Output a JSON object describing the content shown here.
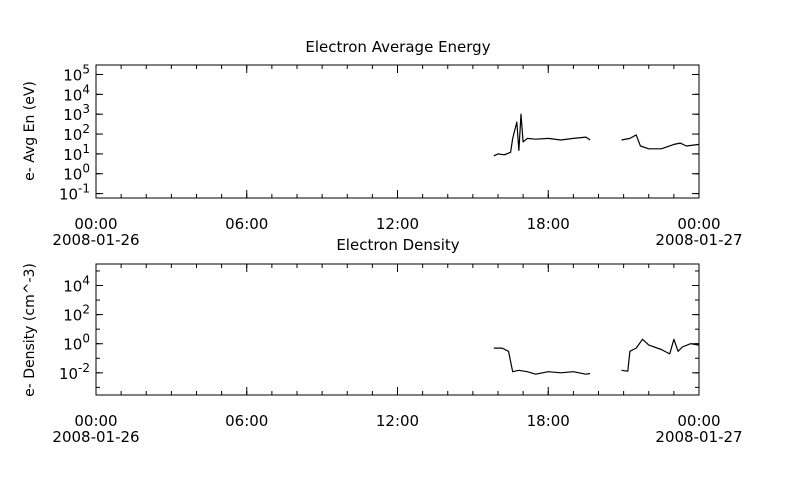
{
  "chart_data": [
    {
      "type": "line",
      "title": "Electron Average Energy",
      "ylabel": "e- Avg En (eV)",
      "xlabel": "",
      "yscale": "log",
      "ylim": [
        0.06,
        300000
      ],
      "xlim": [
        "2008-01-26 00:00",
        "2008-01-27 00:00"
      ],
      "y_ticks": [
        "10^-1",
        "10^0",
        "10^1",
        "10^2",
        "10^3",
        "10^4",
        "10^5"
      ],
      "x_ticks": [
        {
          "time": "00:00",
          "date": "2008-01-26"
        },
        {
          "time": "06:00",
          "date": ""
        },
        {
          "time": "12:00",
          "date": ""
        },
        {
          "time": "18:00",
          "date": ""
        },
        {
          "time": "00:00",
          "date": "2008-01-27"
        }
      ],
      "grid": false,
      "series": [
        {
          "values": [
            [
              "2008-01-26 15:50",
              8
            ],
            [
              "2008-01-26 16:00",
              10
            ],
            [
              "2008-01-26 16:15",
              9
            ],
            [
              "2008-01-26 16:30",
              12
            ],
            [
              "2008-01-26 16:35",
              60
            ],
            [
              "2008-01-26 16:45",
              400
            ],
            [
              "2008-01-26 16:50",
              15
            ],
            [
              "2008-01-26 16:55",
              1000
            ],
            [
              "2008-01-26 17:00",
              40
            ],
            [
              "2008-01-26 17:10",
              60
            ],
            [
              "2008-01-26 17:30",
              55
            ],
            [
              "2008-01-26 18:00",
              60
            ],
            [
              "2008-01-26 18:30",
              50
            ],
            [
              "2008-01-26 19:00",
              60
            ],
            [
              "2008-01-26 19:30",
              70
            ],
            [
              "2008-01-26 19:40",
              50
            ]
          ]
        },
        {
          "values": [
            [
              "2008-01-26 20:55",
              50
            ],
            [
              "2008-01-26 21:15",
              60
            ],
            [
              "2008-01-26 21:30",
              90
            ],
            [
              "2008-01-26 21:40",
              25
            ],
            [
              "2008-01-26 22:00",
              18
            ],
            [
              "2008-01-26 22:30",
              18
            ],
            [
              "2008-01-26 23:00",
              30
            ],
            [
              "2008-01-26 23:15",
              35
            ],
            [
              "2008-01-26 23:30",
              25
            ],
            [
              "2008-01-27 00:00",
              30
            ]
          ]
        }
      ]
    },
    {
      "type": "line",
      "title": "Electron Density",
      "ylabel": "e- Density (cm^-3)",
      "xlabel": "",
      "yscale": "log",
      "ylim": [
        0.0003,
        300000
      ],
      "xlim": [
        "2008-01-26 00:00",
        "2008-01-27 00:00"
      ],
      "y_ticks": [
        "10^-2",
        "10^0",
        "10^2",
        "10^4"
      ],
      "x_ticks": [
        {
          "time": "00:00",
          "date": "2008-01-26"
        },
        {
          "time": "06:00",
          "date": ""
        },
        {
          "time": "12:00",
          "date": ""
        },
        {
          "time": "18:00",
          "date": ""
        },
        {
          "time": "00:00",
          "date": "2008-01-27"
        }
      ],
      "grid": false,
      "series": [
        {
          "values": [
            [
              "2008-01-26 15:50",
              0.5
            ],
            [
              "2008-01-26 16:10",
              0.5
            ],
            [
              "2008-01-26 16:25",
              0.3
            ],
            [
              "2008-01-26 16:35",
              0.012
            ],
            [
              "2008-01-26 16:50",
              0.015
            ],
            [
              "2008-01-26 17:10",
              0.012
            ],
            [
              "2008-01-26 17:30",
              0.008
            ],
            [
              "2008-01-26 18:00",
              0.012
            ],
            [
              "2008-01-26 18:30",
              0.01
            ],
            [
              "2008-01-26 19:00",
              0.012
            ],
            [
              "2008-01-26 19:30",
              0.008
            ],
            [
              "2008-01-26 19:40",
              0.009
            ]
          ]
        },
        {
          "values": [
            [
              "2008-01-26 20:55",
              0.015
            ],
            [
              "2008-01-26 21:10",
              0.013
            ],
            [
              "2008-01-26 21:15",
              0.3
            ],
            [
              "2008-01-26 21:30",
              0.5
            ],
            [
              "2008-01-26 21:45",
              2
            ],
            [
              "2008-01-26 22:00",
              0.8
            ],
            [
              "2008-01-26 22:30",
              0.4
            ],
            [
              "2008-01-26 22:50",
              0.2
            ],
            [
              "2008-01-26 23:00",
              2
            ],
            [
              "2008-01-26 23:10",
              0.3
            ],
            [
              "2008-01-26 23:20",
              0.6
            ],
            [
              "2008-01-26 23:40",
              1
            ],
            [
              "2008-01-27 00:00",
              0.8
            ]
          ]
        }
      ]
    }
  ]
}
